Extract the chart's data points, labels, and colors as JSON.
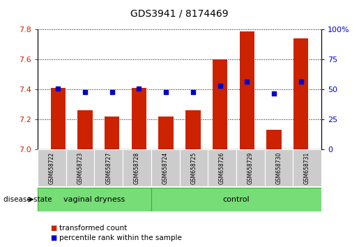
{
  "title": "GDS3941 / 8174469",
  "samples": [
    "GSM658722",
    "GSM658723",
    "GSM658727",
    "GSM658728",
    "GSM658724",
    "GSM658725",
    "GSM658726",
    "GSM658729",
    "GSM658730",
    "GSM658731"
  ],
  "transformed_count": [
    7.41,
    7.26,
    7.22,
    7.41,
    7.22,
    7.26,
    7.6,
    7.79,
    7.13,
    7.74
  ],
  "percentile_rank_left": [
    7.405,
    7.385,
    7.385,
    7.405,
    7.382,
    7.385,
    7.425,
    7.455,
    7.375,
    7.455
  ],
  "ylim_left": [
    7.0,
    7.8
  ],
  "ylim_right": [
    0,
    100
  ],
  "yticks_left": [
    7.0,
    7.2,
    7.4,
    7.6,
    7.8
  ],
  "yticks_right": [
    0,
    25,
    50,
    75,
    100
  ],
  "bar_color": "#cc2200",
  "dot_color": "#0000cc",
  "bar_width": 0.55,
  "disease_state_label": "disease state",
  "vd_label": "vaginal dryness",
  "ctrl_label": "control",
  "vd_count": 4,
  "ctrl_count": 6,
  "group_color": "#77dd77",
  "sample_box_color": "#cccccc",
  "legend_items": [
    {
      "label": "transformed count",
      "color": "#cc2200"
    },
    {
      "label": "percentile rank within the sample",
      "color": "#0000cc"
    }
  ],
  "tick_color_left": "#cc2200",
  "tick_color_right": "#0000cc"
}
